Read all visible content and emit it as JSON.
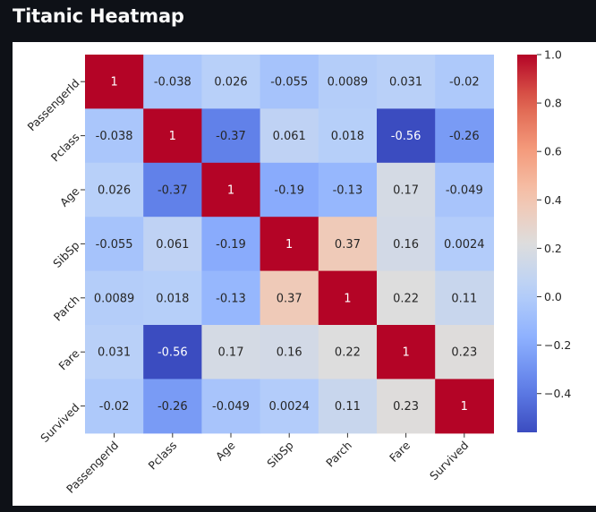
{
  "app": {
    "title": "Titanic Heatmap"
  },
  "chart_data": {
    "type": "heatmap",
    "title": "",
    "xlabel": "",
    "ylabel": "",
    "labels": [
      "PassengerId",
      "Pclass",
      "Age",
      "SibSp",
      "Parch",
      "Fare",
      "Survived"
    ],
    "values": [
      [
        1,
        -0.038,
        0.026,
        -0.055,
        0.0089,
        0.031,
        -0.02
      ],
      [
        -0.038,
        1,
        -0.37,
        0.061,
        0.018,
        -0.56,
        -0.26
      ],
      [
        0.026,
        -0.37,
        1,
        -0.19,
        -0.13,
        0.17,
        -0.049
      ],
      [
        -0.055,
        0.061,
        -0.19,
        1,
        0.37,
        0.16,
        0.0024
      ],
      [
        0.0089,
        0.018,
        -0.13,
        0.37,
        1,
        0.22,
        0.11
      ],
      [
        0.031,
        -0.56,
        0.17,
        0.16,
        0.22,
        1,
        0.23
      ],
      [
        -0.02,
        -0.26,
        -0.049,
        0.0024,
        0.11,
        0.23,
        1
      ]
    ],
    "colorscale": "coolwarm",
    "colorbar": {
      "range": [
        -0.56,
        1.0
      ],
      "ticks": [
        1.0,
        0.8,
        0.6,
        0.4,
        0.2,
        0.0,
        -0.2,
        -0.4
      ],
      "tick_labels": [
        "1.0",
        "0.8",
        "0.6",
        "0.4",
        "0.2",
        "0.0",
        "−0.2",
        "−0.4"
      ]
    },
    "legend_position": "right",
    "grid": false,
    "annotations": true
  }
}
